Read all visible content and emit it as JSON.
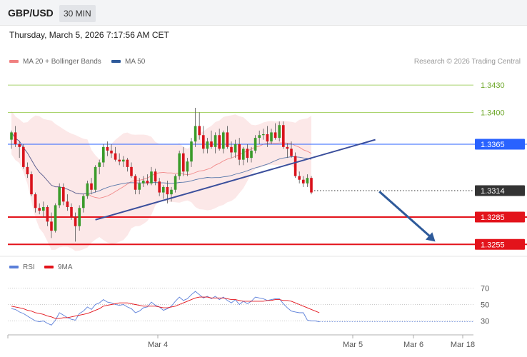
{
  "header": {
    "symbol": "GBP/USD",
    "timeframe": "30 MIN"
  },
  "datetime": "Thursday, March 5, 2026 7:17:56 AM CET",
  "credit": "Research © 2026 Trading Central",
  "colors": {
    "bollinger": "#f08080",
    "ma50": "#2e5a9a",
    "rsi": "#5b7fd9",
    "rsi_ma": "#e3131b",
    "target_blue": "#2962ff",
    "support_red": "#e3131b",
    "resistance_green": "#8dc63f"
  },
  "chart_data": [
    {
      "type": "candlestick",
      "legend": [
        {
          "label": "MA 20 + Bollinger Bands",
          "color": "#f08080"
        },
        {
          "label": "MA 50",
          "color": "#2e5a9a"
        }
      ],
      "ylim": [
        1.3245,
        1.3445
      ],
      "x_ticks": [
        "Mar 4",
        "Mar 5",
        "Mar 6",
        "Mar 18"
      ],
      "levels": [
        {
          "value": 1.343,
          "label": "1.3430",
          "kind": "resistance",
          "color": "#8dc63f"
        },
        {
          "value": 1.34,
          "label": "1.3400",
          "kind": "resistance",
          "color": "#8dc63f"
        },
        {
          "value": 1.3365,
          "label": "1.3365",
          "kind": "pivot",
          "color": "#2962ff"
        },
        {
          "value": 1.3314,
          "label": "1.3314",
          "kind": "last",
          "color": "#333333"
        },
        {
          "value": 1.3285,
          "label": "1.3285",
          "kind": "support",
          "color": "#e3131b"
        },
        {
          "value": 1.3255,
          "label": "1.3255",
          "kind": "support",
          "color": "#e3131b"
        }
      ],
      "candles": [
        [
          1.337,
          1.338,
          1.336,
          1.3378
        ],
        [
          1.3378,
          1.3385,
          1.3362,
          1.3365
        ],
        [
          1.3365,
          1.3368,
          1.335,
          1.3362
        ],
        [
          1.3362,
          1.3365,
          1.3338,
          1.334
        ],
        [
          1.334,
          1.3345,
          1.3328,
          1.3332
        ],
        [
          1.3332,
          1.3335,
          1.3308,
          1.331
        ],
        [
          1.331,
          1.3312,
          1.329,
          1.3295
        ],
        [
          1.3295,
          1.33,
          1.3288,
          1.3292
        ],
        [
          1.3292,
          1.3302,
          1.3285,
          1.3296
        ],
        [
          1.3296,
          1.3298,
          1.3275,
          1.328
        ],
        [
          1.328,
          1.329,
          1.3262,
          1.327
        ],
        [
          1.327,
          1.33,
          1.3268,
          1.3298
        ],
        [
          1.3298,
          1.3322,
          1.3295,
          1.3318
        ],
        [
          1.3318,
          1.3322,
          1.3298,
          1.3302
        ],
        [
          1.3302,
          1.331,
          1.3292,
          1.3296
        ],
        [
          1.3296,
          1.33,
          1.3282,
          1.3285
        ],
        [
          1.3285,
          1.329,
          1.3258,
          1.3275
        ],
        [
          1.3275,
          1.3298,
          1.327,
          1.3295
        ],
        [
          1.3295,
          1.331,
          1.329,
          1.3308
        ],
        [
          1.3308,
          1.3325,
          1.3305,
          1.3322
        ],
        [
          1.3322,
          1.3328,
          1.331,
          1.3315
        ],
        [
          1.3315,
          1.3342,
          1.3312,
          1.334
        ],
        [
          1.334,
          1.3348,
          1.3332,
          1.3345
        ],
        [
          1.3345,
          1.3365,
          1.334,
          1.3362
        ],
        [
          1.3362,
          1.3368,
          1.3352,
          1.3358
        ],
        [
          1.3358,
          1.3365,
          1.335,
          1.3355
        ],
        [
          1.3355,
          1.3362,
          1.3346,
          1.3348
        ],
        [
          1.3348,
          1.3355,
          1.3342,
          1.3346
        ],
        [
          1.3346,
          1.3352,
          1.334,
          1.3348
        ],
        [
          1.3348,
          1.335,
          1.3335,
          1.334
        ],
        [
          1.334,
          1.3345,
          1.3328,
          1.333
        ],
        [
          1.333,
          1.3332,
          1.331,
          1.3315
        ],
        [
          1.3315,
          1.3328,
          1.331,
          1.3322
        ],
        [
          1.3322,
          1.333,
          1.3318,
          1.3325
        ],
        [
          1.3325,
          1.3332,
          1.332,
          1.3322
        ],
        [
          1.3322,
          1.334,
          1.332,
          1.3335
        ],
        [
          1.3335,
          1.3338,
          1.332,
          1.3324
        ],
        [
          1.3324,
          1.3328,
          1.3308,
          1.3312
        ],
        [
          1.3312,
          1.332,
          1.3305,
          1.3318
        ],
        [
          1.3318,
          1.3325,
          1.33,
          1.331
        ],
        [
          1.331,
          1.3318,
          1.3302,
          1.3315
        ],
        [
          1.3315,
          1.3332,
          1.3312,
          1.333
        ],
        [
          1.333,
          1.3358,
          1.3326,
          1.3355
        ],
        [
          1.3355,
          1.3362,
          1.333,
          1.3335
        ],
        [
          1.3335,
          1.335,
          1.333,
          1.3346
        ],
        [
          1.3346,
          1.3372,
          1.334,
          1.3368
        ],
        [
          1.3368,
          1.3405,
          1.3362,
          1.3385
        ],
        [
          1.3385,
          1.34,
          1.337,
          1.3375
        ],
        [
          1.3375,
          1.3385,
          1.3355,
          1.336
        ],
        [
          1.336,
          1.3372,
          1.3355,
          1.3368
        ],
        [
          1.3368,
          1.338,
          1.336,
          1.3362
        ],
        [
          1.3362,
          1.3378,
          1.3355,
          1.3375
        ],
        [
          1.3375,
          1.3382,
          1.3358,
          1.336
        ],
        [
          1.336,
          1.338,
          1.3355,
          1.3378
        ],
        [
          1.3378,
          1.3385,
          1.336,
          1.3362
        ],
        [
          1.3362,
          1.3368,
          1.335,
          1.3356
        ],
        [
          1.3356,
          1.337,
          1.335,
          1.3365
        ],
        [
          1.3365,
          1.3372,
          1.3342,
          1.3348
        ],
        [
          1.3348,
          1.3362,
          1.3342,
          1.336
        ],
        [
          1.336,
          1.3365,
          1.3345,
          1.335
        ],
        [
          1.335,
          1.3362,
          1.3345,
          1.3358
        ],
        [
          1.3358,
          1.3375,
          1.3355,
          1.3372
        ],
        [
          1.3372,
          1.338,
          1.3365,
          1.3375
        ],
        [
          1.3375,
          1.3382,
          1.337,
          1.3376
        ],
        [
          1.3376,
          1.3385,
          1.3362,
          1.3368
        ],
        [
          1.3368,
          1.3382,
          1.3365,
          1.3378
        ],
        [
          1.3378,
          1.3388,
          1.337,
          1.3372
        ],
        [
          1.3372,
          1.339,
          1.3368,
          1.3386
        ],
        [
          1.3386,
          1.339,
          1.336,
          1.3362
        ],
        [
          1.3362,
          1.3366,
          1.335,
          1.336
        ],
        [
          1.336,
          1.3368,
          1.335,
          1.3352
        ],
        [
          1.3352,
          1.3356,
          1.3328,
          1.333
        ],
        [
          1.333,
          1.3335,
          1.3322,
          1.3326
        ],
        [
          1.3326,
          1.333,
          1.3318,
          1.3322
        ],
        [
          1.3322,
          1.3332,
          1.3318,
          1.3328
        ],
        [
          1.3328,
          1.333,
          1.331,
          1.3312
        ]
      ],
      "pattern": {
        "trendline": {
          "from": {
            "bar": 21,
            "value": 1.3282
          },
          "to": {
            "bar": 91,
            "value": 1.337
          }
        },
        "forecast": {
          "from": {
            "bar": 92,
            "value": 1.3313
          },
          "to": {
            "bar": 106,
            "value": 1.3258
          }
        }
      }
    },
    {
      "type": "line",
      "legend": [
        {
          "label": "RSI",
          "color": "#5b7fd9"
        },
        {
          "label": "9MA",
          "color": "#e3131b"
        }
      ],
      "ylim": [
        20,
        80
      ],
      "y_ticks": [
        30,
        50,
        70
      ],
      "series": [
        {
          "name": "RSI",
          "values": [
            45,
            44,
            41,
            39,
            36,
            33,
            30,
            29,
            30,
            27,
            25,
            31,
            40,
            37,
            34,
            32,
            31,
            39,
            42,
            47,
            44,
            50,
            52,
            56,
            53,
            52,
            50,
            49,
            50,
            47,
            45,
            40,
            42,
            46,
            47,
            53,
            49,
            47,
            43,
            45,
            48,
            54,
            59,
            55,
            57,
            62,
            66,
            62,
            58,
            60,
            57,
            60,
            56,
            59,
            55,
            52,
            56,
            50,
            54,
            51,
            54,
            59,
            58,
            57,
            55,
            56,
            57,
            57,
            51,
            46,
            42,
            41,
            40,
            40,
            31,
            30,
            30,
            29
          ]
        },
        {
          "name": "9MA",
          "values": [
            48,
            47,
            46,
            45,
            43,
            42,
            40,
            39,
            38,
            36,
            35,
            33,
            33,
            34,
            34,
            35,
            36,
            37,
            38,
            39,
            41,
            43,
            45,
            48,
            49,
            50,
            51,
            52,
            52,
            52,
            51,
            50,
            49,
            48,
            48,
            48,
            48,
            47,
            46,
            46,
            47,
            48,
            50,
            52,
            54,
            56,
            58,
            59,
            59,
            59,
            58,
            58,
            58,
            58,
            57,
            56,
            56,
            55,
            54,
            54,
            54,
            54,
            54,
            54,
            55,
            55,
            56,
            56,
            55,
            55,
            54,
            52,
            50,
            48,
            46,
            44,
            42,
            40
          ]
        }
      ]
    }
  ]
}
